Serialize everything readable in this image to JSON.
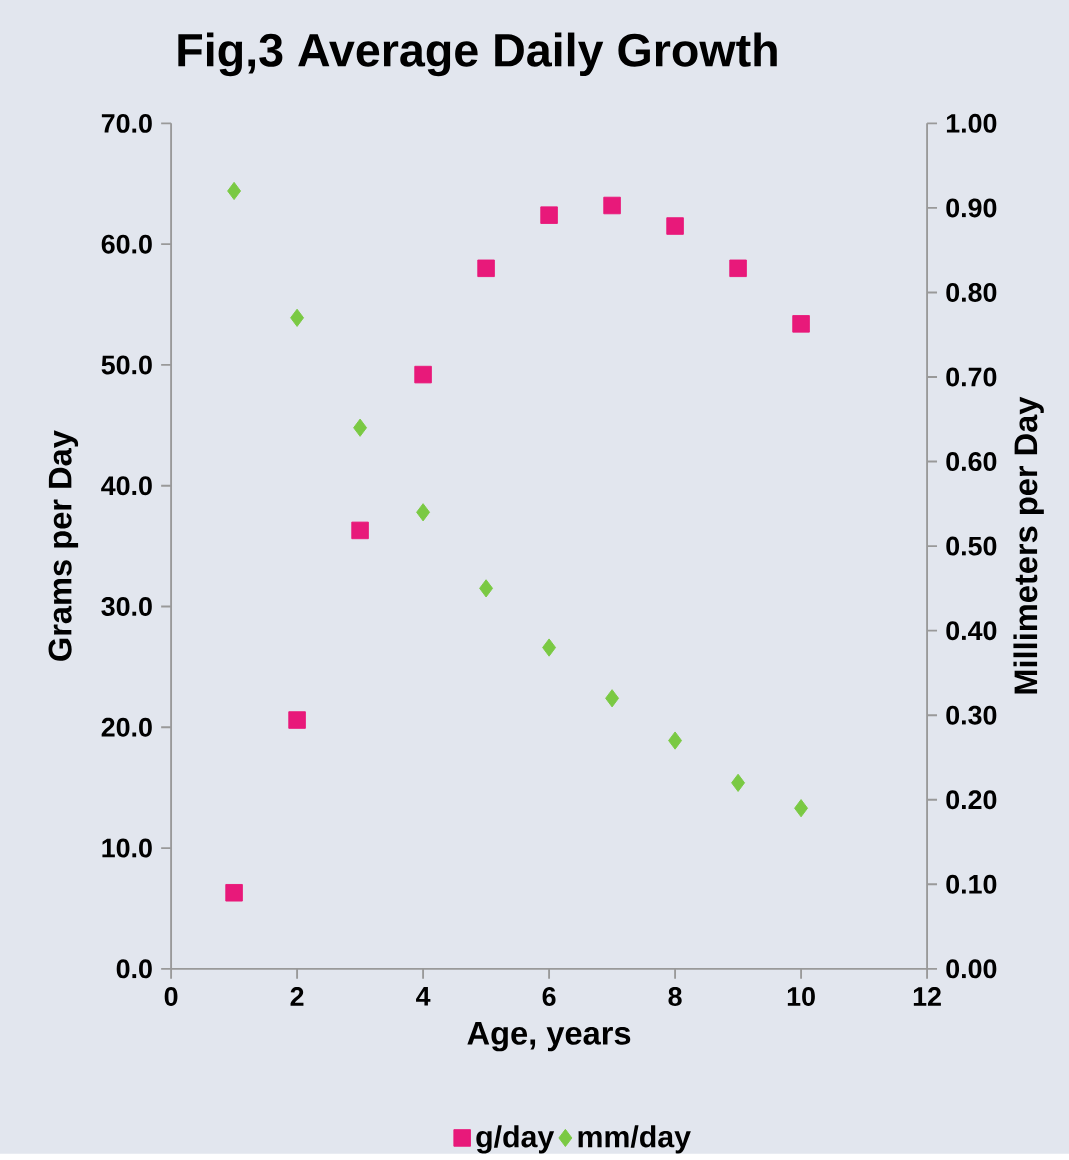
{
  "chart_data": {
    "type": "scatter",
    "title": "Fig,3      Average Daily Growth",
    "xlabel": "Age, years",
    "ylabel": "Grams per Day",
    "y2label": "Millimeters per Day",
    "x": [
      1,
      2,
      3,
      4,
      5,
      6,
      7,
      8,
      9,
      10
    ],
    "series": [
      {
        "name": "g/day",
        "color": "#e8197a",
        "marker": "square",
        "values": [
          6.3,
          20.6,
          36.3,
          49.2,
          58.0,
          62.4,
          63.2,
          61.5,
          58.0,
          53.4
        ]
      },
      {
        "name": "mm/day",
        "color": "#7ac943",
        "marker": "diamond",
        "axis": "y2",
        "values": [
          0.92,
          0.77,
          0.64,
          0.54,
          0.45,
          0.38,
          0.32,
          0.27,
          0.22,
          0.19
        ]
      }
    ],
    "xlim": [
      0,
      12
    ],
    "xticks": [
      0,
      2,
      4,
      6,
      8,
      10,
      12
    ],
    "ylim": [
      0,
      70
    ],
    "yticks": [
      {
        "value": 0,
        "label": "0.0"
      },
      {
        "value": 10,
        "label": "10.0"
      },
      {
        "value": 20,
        "label": "20.0"
      },
      {
        "value": 30,
        "label": "30.0"
      },
      {
        "value": 40,
        "label": "40.0"
      },
      {
        "value": 50,
        "label": "50.0"
      },
      {
        "value": 60,
        "label": "60.0"
      },
      {
        "value": 70,
        "label": "70.0"
      }
    ],
    "y2lim": [
      0,
      1
    ],
    "y2ticks": [
      {
        "value": 0,
        "label": "0.00"
      },
      {
        "value": 0.1,
        "label": "0.10"
      },
      {
        "value": 0.2,
        "label": "0.20"
      },
      {
        "value": 0.3,
        "label": "0.30"
      },
      {
        "value": 0.4,
        "label": "0.40"
      },
      {
        "value": 0.5,
        "label": "0.50"
      },
      {
        "value": 0.6,
        "label": "0.60"
      },
      {
        "value": 0.7,
        "label": "0.70"
      },
      {
        "value": 0.8,
        "label": "0.80"
      },
      {
        "value": 0.9,
        "label": "0.90"
      },
      {
        "value": 1,
        "label": "1.00"
      }
    ],
    "legend": "bottom"
  }
}
